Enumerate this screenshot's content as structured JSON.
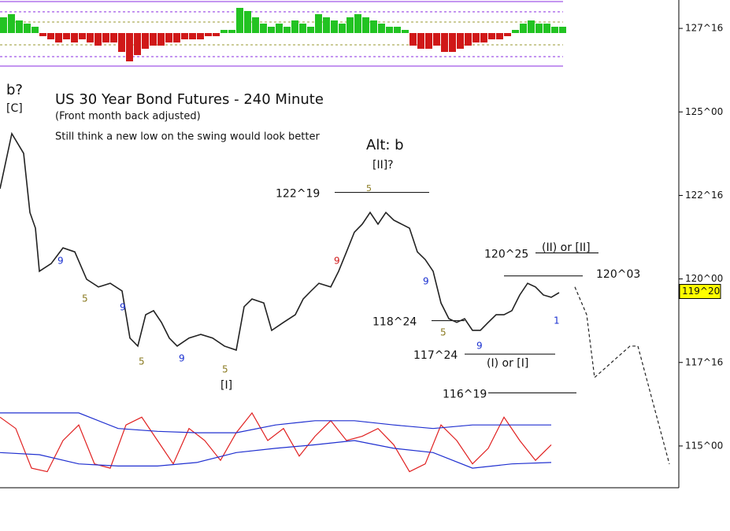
{
  "chart_data": [
    {
      "type": "line",
      "title": "US 30 Year Bond Futures - 240 Minute",
      "subtitle": "(Front month back adjusted)",
      "note": "Still think a new low on the swing would look better",
      "ylim": [
        113.75,
        128.35
      ],
      "xlim": [
        0,
        86
      ],
      "yticks": [
        {
          "value": 127.5,
          "label": "127^16"
        },
        {
          "value": 125,
          "label": "125^00"
        },
        {
          "value": 122.5,
          "label": "122^16"
        },
        {
          "value": 120,
          "label": "120^00"
        },
        {
          "value": 117.5,
          "label": "117^16"
        },
        {
          "value": 115,
          "label": "115^00"
        }
      ],
      "last_price": {
        "value": 119.625,
        "label": "119^20"
      },
      "levels": [
        {
          "value": 122.59,
          "label": "122^19"
        },
        {
          "value": 120.78,
          "label": "120^25"
        },
        {
          "value": 120.09,
          "label": "120^03"
        },
        {
          "value": 118.75,
          "label": "118^24"
        },
        {
          "value": 117.75,
          "label": "117^24"
        },
        {
          "value": 116.59,
          "label": "116^19"
        }
      ],
      "annotations": [
        "b?",
        "[C]",
        "Alt: b",
        "[II]?",
        "5",
        "9",
        "5",
        "9",
        "5",
        "9",
        "5",
        "[I]",
        "9",
        "9",
        "5",
        "9",
        "1",
        "(II) or [II]",
        "(I) or [I]"
      ],
      "series": [
        {
          "name": "Price",
          "color": "#222222",
          "x": [
            0,
            1.5,
            3,
            3.8,
            4.5,
            5,
            6.5,
            8,
            9.5,
            11,
            12.5,
            14,
            15.5,
            16.5,
            17.5,
            18.5,
            19.5,
            20.5,
            21.5,
            22.5,
            24,
            25.5,
            27,
            28.5,
            30,
            31,
            32,
            33.5,
            34.5,
            36,
            37.5,
            38.5,
            39.5,
            40.5,
            42,
            43,
            44,
            45,
            46,
            47,
            48,
            49,
            50,
            51,
            52,
            53,
            54,
            55,
            56,
            57,
            58,
            59,
            60,
            61,
            62,
            63,
            64,
            65,
            66,
            67,
            68,
            69,
            70,
            71
          ],
          "values": [
            122.7,
            124.35,
            123.76,
            121.99,
            121.52,
            120.23,
            120.46,
            120.93,
            120.81,
            119.99,
            119.76,
            119.87,
            119.64,
            118.23,
            117.99,
            118.93,
            119.05,
            118.7,
            118.23,
            117.99,
            118.23,
            118.34,
            118.23,
            117.99,
            117.87,
            119.17,
            119.4,
            119.28,
            118.46,
            118.7,
            118.93,
            119.4,
            119.64,
            119.87,
            119.76,
            120.23,
            120.81,
            121.4,
            121.64,
            121.99,
            121.64,
            121.99,
            121.76,
            121.64,
            121.52,
            120.81,
            120.58,
            120.23,
            119.28,
            118.81,
            118.7,
            118.81,
            118.46,
            118.46,
            118.7,
            118.93,
            118.93,
            119.05,
            119.52,
            119.87,
            119.76,
            119.52,
            119.45,
            119.59
          ]
        },
        {
          "name": "Projection",
          "color": "#222222",
          "x": [
            73,
            74.5,
            75.5,
            80,
            81,
            85
          ],
          "values": [
            119.76,
            118.93,
            117.05,
            117.99,
            117.99,
            114.46
          ]
        }
      ]
    },
    {
      "type": "bar",
      "ylim": [
        -1,
        1
      ],
      "values": [
        0.5,
        0.6,
        0.4,
        0.3,
        0.2,
        -0.1,
        -0.2,
        -0.3,
        -0.2,
        -0.3,
        -0.2,
        -0.3,
        -0.4,
        -0.3,
        -0.3,
        -0.6,
        -0.9,
        -0.7,
        -0.5,
        -0.4,
        -0.4,
        -0.3,
        -0.3,
        -0.2,
        -0.2,
        -0.2,
        -0.1,
        -0.1,
        0.1,
        0.1,
        0.8,
        0.7,
        0.5,
        0.3,
        0.2,
        0.3,
        0.2,
        0.4,
        0.3,
        0.2,
        0.6,
        0.5,
        0.4,
        0.3,
        0.5,
        0.6,
        0.5,
        0.4,
        0.3,
        0.2,
        0.2,
        0.1,
        -0.4,
        -0.5,
        -0.5,
        -0.4,
        -0.6,
        -0.6,
        -0.5,
        -0.4,
        -0.3,
        -0.3,
        -0.2,
        -0.2,
        -0.1,
        0.1,
        0.3,
        0.4,
        0.3,
        0.3,
        0.2,
        0.2
      ],
      "colors": {
        "up": "#22c322",
        "down": "#d01818"
      }
    },
    {
      "type": "line",
      "ylim": [
        0,
        100
      ],
      "series": [
        {
          "name": "Oscillator",
          "color": "#e02020",
          "x": [
            0,
            20,
            40,
            60,
            80,
            100,
            120,
            140,
            160,
            180,
            200,
            220,
            240,
            260,
            280,
            300,
            320,
            340,
            360,
            380,
            400,
            420,
            440,
            460,
            480,
            500,
            520,
            540,
            560,
            580,
            600,
            620,
            640,
            660,
            680,
            700
          ],
          "values": [
            83,
            67,
            11,
            6,
            50,
            72,
            17,
            11,
            72,
            83,
            50,
            17,
            67,
            50,
            22,
            61,
            89,
            50,
            67,
            28,
            56,
            78,
            50,
            56,
            67,
            44,
            6,
            17,
            72,
            50,
            17,
            39,
            83,
            50,
            22,
            44
          ]
        },
        {
          "name": "Upper band",
          "color": "#2030d0",
          "x": [
            0,
            50,
            100,
            150,
            200,
            250,
            300,
            350,
            400,
            450,
            500,
            550,
            600,
            650,
            700
          ],
          "values": [
            89,
            89,
            89,
            67,
            63,
            61,
            61,
            72,
            78,
            78,
            72,
            67,
            72,
            72,
            72
          ]
        },
        {
          "name": "Lower band",
          "color": "#2030d0",
          "x": [
            0,
            50,
            100,
            150,
            200,
            250,
            300,
            350,
            400,
            450,
            500,
            550,
            600,
            650,
            700
          ],
          "values": [
            33,
            30,
            17,
            14,
            14,
            19,
            33,
            39,
            44,
            50,
            39,
            33,
            11,
            17,
            19
          ]
        }
      ]
    }
  ]
}
